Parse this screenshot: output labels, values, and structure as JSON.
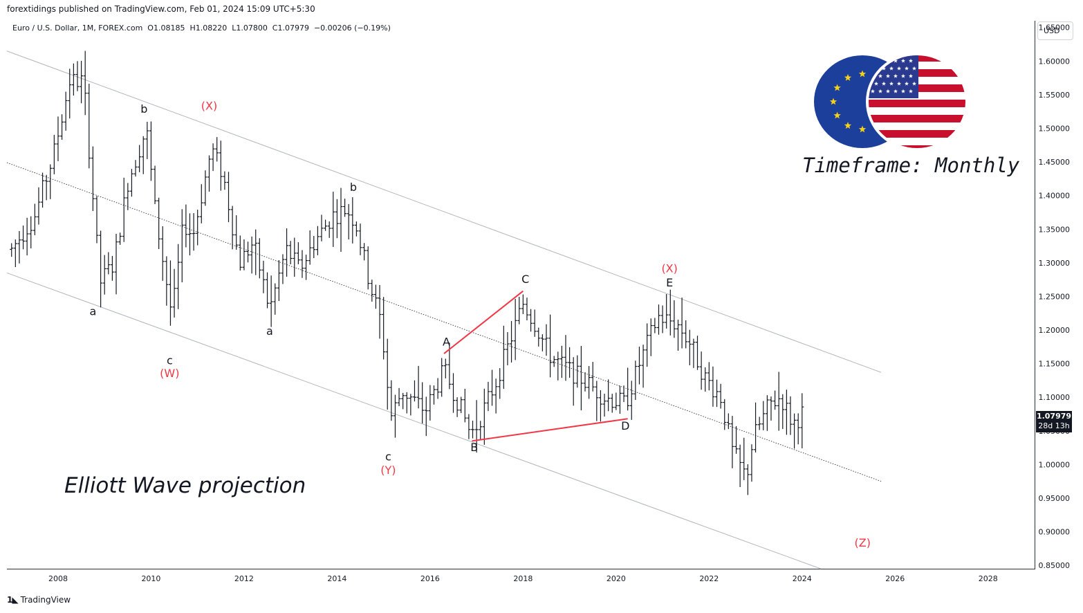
{
  "header": {
    "published": "forextidings published on TradingView.com, Feb 01, 2024 15:09 UTC+5:30",
    "legend": "Euro / U.S. Dollar, 1M, FOREX.com  O1.08185  H1.08220  L1.07800  C1.07979  −0.00206 (−0.19%)"
  },
  "currency": "USD",
  "last_price": {
    "value": "1.07979",
    "countdown": "28d 13h"
  },
  "footer": {
    "brand": "TradingView",
    "logo_icon": "tradingview-logo-icon"
  },
  "annotations": {
    "timeframe": "Timeframe: Monthly",
    "projection": "Elliott Wave projection",
    "flags_icon": "eu-us-flags-icon"
  },
  "colors": {
    "candle": "#131722",
    "wave_red": "#f23645",
    "channel": "#b2b5be"
  },
  "chart_data": {
    "type": "ohlc",
    "symbol": "EURUSD",
    "interval": "1M",
    "xlim": [
      2006.9,
      2029.0
    ],
    "ylim": [
      0.845,
      1.66
    ],
    "x_ticks": [
      "2008",
      "2010",
      "2012",
      "2014",
      "2016",
      "2018",
      "2020",
      "2022",
      "2024",
      "2026",
      "2028"
    ],
    "y_ticks": [
      "0.85000",
      "0.90000",
      "0.95000",
      "1.00000",
      "1.05000",
      "1.10000",
      "1.15000",
      "1.20000",
      "1.25000",
      "1.30000",
      "1.35000",
      "1.40000",
      "1.45000",
      "1.50000",
      "1.55000",
      "1.60000",
      "1.65000"
    ],
    "series": [
      {
        "close": [
          [
            2007.0,
            1.32
          ],
          [
            2007.5,
            1.37
          ],
          [
            2007.9,
            1.46
          ],
          [
            2008.25,
            1.57
          ],
          [
            2008.55,
            1.57
          ],
          [
            2008.9,
            1.27
          ],
          [
            2009.2,
            1.3
          ],
          [
            2009.5,
            1.42
          ],
          [
            2009.9,
            1.5
          ],
          [
            2010.1,
            1.37
          ],
          [
            2010.45,
            1.22
          ],
          [
            2010.7,
            1.36
          ],
          [
            2010.9,
            1.34
          ],
          [
            2011.3,
            1.47
          ],
          [
            2011.55,
            1.43
          ],
          [
            2011.9,
            1.3
          ],
          [
            2012.2,
            1.33
          ],
          [
            2012.55,
            1.23
          ],
          [
            2012.9,
            1.32
          ],
          [
            2013.2,
            1.29
          ],
          [
            2013.5,
            1.33
          ],
          [
            2013.9,
            1.37
          ],
          [
            2014.2,
            1.38
          ],
          [
            2014.4,
            1.36
          ],
          [
            2014.7,
            1.27
          ],
          [
            2014.95,
            1.21
          ],
          [
            2015.15,
            1.07
          ],
          [
            2015.4,
            1.11
          ],
          [
            2015.9,
            1.08
          ],
          [
            2016.3,
            1.14
          ],
          [
            2016.5,
            1.11
          ],
          [
            2016.85,
            1.05
          ],
          [
            2016.95,
            1.05
          ],
          [
            2017.4,
            1.12
          ],
          [
            2017.75,
            1.19
          ],
          [
            2018.0,
            1.24
          ],
          [
            2018.25,
            1.21
          ],
          [
            2018.6,
            1.16
          ],
          [
            2019.0,
            1.14
          ],
          [
            2019.4,
            1.12
          ],
          [
            2019.75,
            1.1
          ],
          [
            2020.2,
            1.09
          ],
          [
            2020.5,
            1.15
          ],
          [
            2020.9,
            1.22
          ],
          [
            2021.3,
            1.21
          ],
          [
            2021.6,
            1.18
          ],
          [
            2021.9,
            1.13
          ],
          [
            2022.25,
            1.1
          ],
          [
            2022.5,
            1.02
          ],
          [
            2022.8,
            0.98
          ],
          [
            2022.95,
            1.04
          ],
          [
            2023.3,
            1.09
          ],
          [
            2023.55,
            1.1
          ],
          [
            2023.8,
            1.06
          ],
          [
            2024.05,
            1.08
          ]
        ]
      }
    ],
    "channels": [
      {
        "style": "solid",
        "points": [
          [
            2006.9,
            1.615
          ],
          [
            2025.7,
            1.137
          ]
        ]
      },
      {
        "style": "dotted",
        "points": [
          [
            2006.9,
            1.449
          ],
          [
            2025.7,
            0.975
          ]
        ]
      },
      {
        "style": "solid",
        "points": [
          [
            2006.9,
            1.285
          ],
          [
            2024.4,
            0.845
          ]
        ]
      }
    ],
    "triangle_lines": [
      {
        "points": [
          [
            2016.3,
            1.165
          ],
          [
            2018.0,
            1.258
          ]
        ]
      },
      {
        "points": [
          [
            2016.9,
            1.035
          ],
          [
            2020.25,
            1.068
          ]
        ]
      }
    ],
    "wave_labels": [
      {
        "text": "a",
        "x": 2008.75,
        "y": 1.222,
        "color": "dark"
      },
      {
        "text": "b",
        "x": 2009.85,
        "y": 1.523,
        "color": "dark"
      },
      {
        "text": "(X)",
        "x": 2011.25,
        "y": 1.528,
        "color": "red"
      },
      {
        "text": "c",
        "x": 2010.4,
        "y": 1.149,
        "color": "dark"
      },
      {
        "text": "(W)",
        "x": 2010.4,
        "y": 1.13,
        "color": "red"
      },
      {
        "text": "a",
        "x": 2012.55,
        "y": 1.193,
        "color": "dark"
      },
      {
        "text": "b",
        "x": 2014.35,
        "y": 1.407,
        "color": "dark"
      },
      {
        "text": "c",
        "x": 2015.1,
        "y": 1.006,
        "color": "dark"
      },
      {
        "text": "(Y)",
        "x": 2015.1,
        "y": 0.986,
        "color": "red"
      },
      {
        "text": "A",
        "x": 2016.35,
        "y": 1.177,
        "color": "dark"
      },
      {
        "text": "B",
        "x": 2016.95,
        "y": 1.02,
        "color": "dark"
      },
      {
        "text": "C",
        "x": 2018.05,
        "y": 1.27,
        "color": "dark"
      },
      {
        "text": "D",
        "x": 2020.2,
        "y": 1.052,
        "color": "dark"
      },
      {
        "text": "(X)",
        "x": 2021.15,
        "y": 1.286,
        "color": "red"
      },
      {
        "text": "E",
        "x": 2021.15,
        "y": 1.265,
        "color": "dark"
      },
      {
        "text": "(Z)",
        "x": 2025.3,
        "y": 0.878,
        "color": "red"
      }
    ]
  }
}
